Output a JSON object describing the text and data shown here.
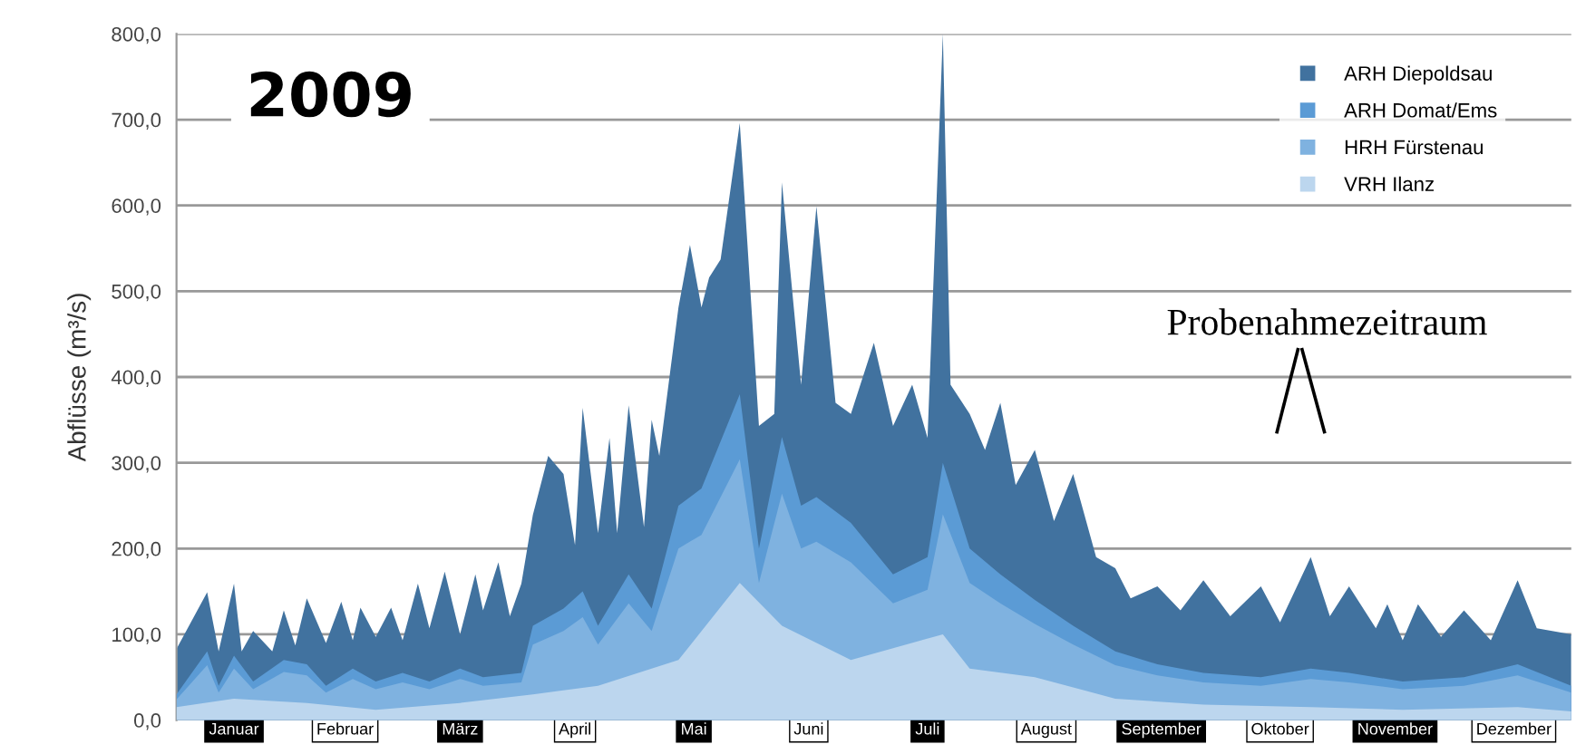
{
  "chart_data": {
    "type": "area",
    "title": "2009",
    "ylabel": "Abflüsse (m³/s)",
    "annotations": [
      "Probenahmezeitraum"
    ],
    "xlim": [
      "2009-01-01",
      "2009-12-31"
    ],
    "xticks": [
      {
        "value": "2009-01-16",
        "label": "Januar"
      },
      {
        "value": "2009-02-14",
        "label": "Februar"
      },
      {
        "value": "2009-03-16",
        "label": "März"
      },
      {
        "value": "2009-04-15",
        "label": "April"
      },
      {
        "value": "2009-05-16",
        "label": "Mai"
      },
      {
        "value": "2009-06-15",
        "label": "Juni"
      },
      {
        "value": "2009-07-16",
        "label": "Juli"
      },
      {
        "value": "2009-08-16",
        "label": "August"
      },
      {
        "value": "2009-09-15",
        "label": "September"
      },
      {
        "value": "2009-10-16",
        "label": "Oktober"
      },
      {
        "value": "2009-11-15",
        "label": "November"
      },
      {
        "value": "2009-12-16",
        "label": "Dezember"
      }
    ],
    "ylim": [
      0,
      800
    ],
    "yticks": [
      {
        "value": 0,
        "label": "0,0"
      },
      {
        "value": 100,
        "label": "100,0"
      },
      {
        "value": 200,
        "label": "200,0"
      },
      {
        "value": 300,
        "label": "300,0"
      },
      {
        "value": 400,
        "label": "400,0"
      },
      {
        "value": 500,
        "label": "500,0"
      },
      {
        "value": 600,
        "label": "600,0"
      },
      {
        "value": 700,
        "label": "700,0"
      },
      {
        "value": 800,
        "label": "800,0"
      }
    ],
    "grid": "y",
    "legend": "top right",
    "series": [
      {
        "name": "ARH Diepoldsau",
        "color": "#41729f",
        "x": [
          "2009-01-01",
          "2009-01-09",
          "2009-01-12",
          "2009-01-16",
          "2009-01-18",
          "2009-01-21",
          "2009-01-26",
          "2009-01-29",
          "2009-02-01",
          "2009-02-04",
          "2009-02-09",
          "2009-02-13",
          "2009-02-16",
          "2009-02-18",
          "2009-02-22",
          "2009-02-26",
          "2009-03-01",
          "2009-03-05",
          "2009-03-08",
          "2009-03-12",
          "2009-03-16",
          "2009-03-20",
          "2009-03-22",
          "2009-03-26",
          "2009-03-29",
          "2009-04-01",
          "2009-04-04",
          "2009-04-08",
          "2009-04-12",
          "2009-04-15",
          "2009-04-17",
          "2009-04-21",
          "2009-04-24",
          "2009-04-26",
          "2009-04-29",
          "2009-05-03",
          "2009-05-05",
          "2009-05-07",
          "2009-05-12",
          "2009-05-15",
          "2009-05-18",
          "2009-05-20",
          "2009-05-23",
          "2009-05-28",
          "2009-06-02",
          "2009-06-06",
          "2009-06-08",
          "2009-06-13",
          "2009-06-17",
          "2009-06-22",
          "2009-06-26",
          "2009-07-02",
          "2009-07-07",
          "2009-07-12",
          "2009-07-16",
          "2009-07-20",
          "2009-07-22",
          "2009-07-27",
          "2009-07-31",
          "2009-08-04",
          "2009-08-08",
          "2009-08-13",
          "2009-08-18",
          "2009-08-23",
          "2009-08-29",
          "2009-09-03",
          "2009-09-07",
          "2009-09-14",
          "2009-09-20",
          "2009-09-26",
          "2009-10-03",
          "2009-10-11",
          "2009-10-16",
          "2009-10-24",
          "2009-10-29",
          "2009-11-03",
          "2009-11-10",
          "2009-11-13",
          "2009-11-17",
          "2009-11-21",
          "2009-11-27",
          "2009-12-03",
          "2009-12-10",
          "2009-12-17",
          "2009-12-22",
          "2009-12-31"
        ],
        "values": [
          83,
          149,
          80,
          159,
          80,
          104,
          80,
          128,
          87,
          142,
          90,
          138,
          93,
          131,
          97,
          131,
          93,
          159,
          107,
          173,
          100,
          170,
          128,
          184,
          121,
          159,
          239,
          308,
          287,
          204,
          364,
          218,
          329,
          218,
          367,
          225,
          350,
          308,
          481,
          554,
          481,
          516,
          537,
          696,
          343,
          357,
          627,
          391,
          599,
          370,
          357,
          440,
          343,
          391,
          329,
          800,
          391,
          357,
          315,
          370,
          274,
          315,
          232,
          287,
          190,
          177,
          142,
          156,
          128,
          163,
          121,
          156,
          114,
          190,
          121,
          156,
          107,
          135,
          93,
          135,
          97,
          128,
          93,
          163,
          107,
          100
        ]
      },
      {
        "name": "ARH Domat/Ems",
        "color": "#5b9bd5",
        "x": [
          "2009-01-01",
          "2009-01-09",
          "2009-01-12",
          "2009-01-16",
          "2009-01-21",
          "2009-01-29",
          "2009-02-04",
          "2009-02-09",
          "2009-02-16",
          "2009-02-22",
          "2009-03-01",
          "2009-03-08",
          "2009-03-16",
          "2009-03-22",
          "2009-04-01",
          "2009-04-04",
          "2009-04-12",
          "2009-04-17",
          "2009-04-21",
          "2009-04-29",
          "2009-05-05",
          "2009-05-12",
          "2009-05-18",
          "2009-05-28",
          "2009-06-02",
          "2009-06-08",
          "2009-06-13",
          "2009-06-17",
          "2009-06-26",
          "2009-07-07",
          "2009-07-16",
          "2009-07-20",
          "2009-07-27",
          "2009-08-04",
          "2009-08-13",
          "2009-08-23",
          "2009-09-03",
          "2009-09-14",
          "2009-09-26",
          "2009-10-11",
          "2009-10-24",
          "2009-11-03",
          "2009-11-17",
          "2009-12-03",
          "2009-12-17",
          "2009-12-31"
        ],
        "values": [
          30,
          80,
          40,
          75,
          45,
          70,
          65,
          40,
          60,
          45,
          55,
          45,
          60,
          50,
          55,
          110,
          130,
          150,
          110,
          170,
          130,
          250,
          270,
          380,
          200,
          330,
          250,
          260,
          230,
          170,
          190,
          300,
          200,
          170,
          140,
          110,
          80,
          65,
          55,
          50,
          60,
          55,
          45,
          50,
          65,
          40
        ]
      },
      {
        "name": "HRH Fürstenau",
        "color": "#7fb2e0",
        "x": [
          "2009-01-01",
          "2009-01-09",
          "2009-01-12",
          "2009-01-16",
          "2009-01-21",
          "2009-01-29",
          "2009-02-04",
          "2009-02-09",
          "2009-02-16",
          "2009-02-22",
          "2009-03-01",
          "2009-03-08",
          "2009-03-16",
          "2009-03-22",
          "2009-04-01",
          "2009-04-04",
          "2009-04-12",
          "2009-04-17",
          "2009-04-21",
          "2009-04-29",
          "2009-05-05",
          "2009-05-12",
          "2009-05-18",
          "2009-05-28",
          "2009-06-02",
          "2009-06-08",
          "2009-06-13",
          "2009-06-17",
          "2009-06-26",
          "2009-07-07",
          "2009-07-16",
          "2009-07-20",
          "2009-07-27",
          "2009-08-04",
          "2009-08-13",
          "2009-08-23",
          "2009-09-03",
          "2009-09-14",
          "2009-09-26",
          "2009-10-11",
          "2009-10-24",
          "2009-11-03",
          "2009-11-17",
          "2009-12-03",
          "2009-12-17",
          "2009-12-31"
        ],
        "values": [
          24,
          64,
          32,
          60,
          36,
          56,
          52,
          32,
          48,
          36,
          44,
          36,
          48,
          40,
          44,
          88,
          104,
          120,
          88,
          136,
          104,
          200,
          216,
          304,
          160,
          264,
          200,
          208,
          184,
          136,
          152,
          240,
          160,
          136,
          112,
          88,
          64,
          52,
          44,
          40,
          48,
          44,
          36,
          40,
          52,
          32
        ]
      },
      {
        "name": "VRH Ilanz",
        "color": "#bcd6ee",
        "x": [
          "2009-01-01",
          "2009-01-16",
          "2009-02-04",
          "2009-02-22",
          "2009-03-16",
          "2009-04-04",
          "2009-04-21",
          "2009-05-12",
          "2009-05-28",
          "2009-06-08",
          "2009-06-26",
          "2009-07-20",
          "2009-07-27",
          "2009-08-13",
          "2009-09-03",
          "2009-09-26",
          "2009-10-24",
          "2009-11-17",
          "2009-12-17",
          "2009-12-31"
        ],
        "values": [
          15,
          25,
          20,
          12,
          20,
          30,
          40,
          70,
          160,
          110,
          70,
          100,
          60,
          50,
          25,
          18,
          15,
          12,
          15,
          10
        ]
      }
    ]
  }
}
